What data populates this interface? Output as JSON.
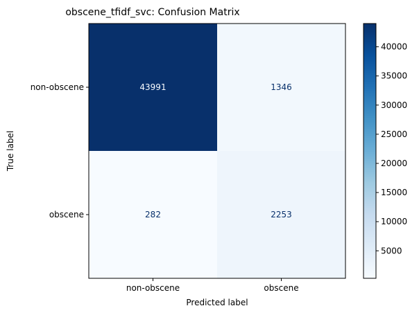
{
  "chart_data": {
    "type": "heatmap",
    "title": "obscene_tfidf_svc: Confusion Matrix",
    "xlabel": "Predicted label",
    "ylabel": "True label",
    "x_categories": [
      "non-obscene",
      "obscene"
    ],
    "y_categories": [
      "non-obscene",
      "obscene"
    ],
    "values": [
      [
        43991,
        1346
      ],
      [
        282,
        2253
      ]
    ],
    "colormap": "Blues",
    "colorbar": {
      "min": 282,
      "max": 43991,
      "ticks": [
        5000,
        10000,
        15000,
        20000,
        25000,
        30000,
        35000,
        40000
      ]
    },
    "colors": {
      "low": "#f7fbff",
      "high": "#08306b",
      "text_on_dark": "#f7fbff",
      "text_on_light": "#08306b"
    }
  }
}
